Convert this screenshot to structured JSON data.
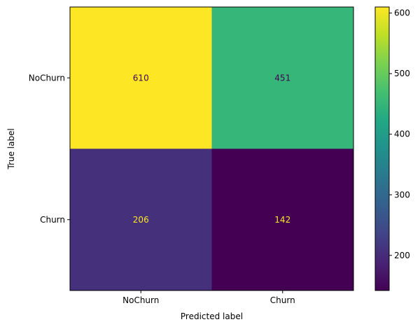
{
  "chart_data": {
    "type": "heatmap",
    "x_label": "Predicted label",
    "y_label": "True label",
    "x_categories": [
      "NoChurn",
      "Churn"
    ],
    "y_categories": [
      "NoChurn",
      "Churn"
    ],
    "matrix": [
      [
        610,
        451
      ],
      [
        206,
        142
      ]
    ],
    "colormap": "viridis",
    "colorbar": {
      "min": 142,
      "max": 610,
      "ticks": [
        200,
        300,
        400,
        500,
        600
      ]
    },
    "text_colors": {
      "on_dark": "#fde725",
      "on_light": "#440154"
    }
  }
}
